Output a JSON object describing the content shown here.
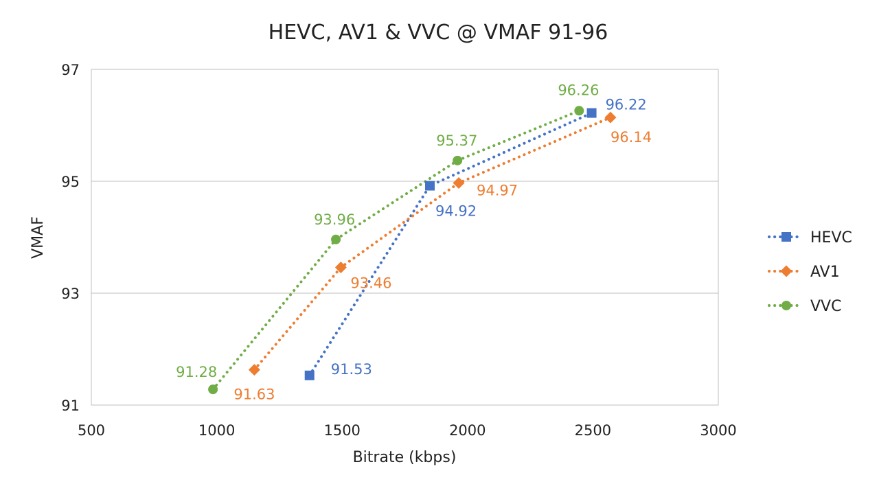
{
  "chart_data": {
    "type": "line",
    "title": "HEVC, AV1 & VVC @ VMAF 91-96",
    "xlabel": "Bitrate (kbps)",
    "ylabel": "VMAF",
    "xlim": [
      500,
      3000
    ],
    "ylim": [
      91,
      97
    ],
    "xticks": [
      500,
      1000,
      1500,
      2000,
      2500,
      3000
    ],
    "yticks": [
      91,
      93,
      95,
      97
    ],
    "grid": "horizontal",
    "legend": "right",
    "series": [
      {
        "name": "HEVC",
        "color": "#4472C4",
        "marker": "square",
        "line": "dotted",
        "points": [
          {
            "x": 1370,
            "y": 91.53,
            "label": "91.53"
          },
          {
            "x": 1850,
            "y": 94.92,
            "label": "94.92"
          },
          {
            "x": 2495,
            "y": 96.22,
            "label": "96.22"
          }
        ]
      },
      {
        "name": "AV1",
        "color": "#ED7D31",
        "marker": "diamond",
        "line": "dotted",
        "points": [
          {
            "x": 1150,
            "y": 91.63,
            "label": "91.63"
          },
          {
            "x": 1495,
            "y": 93.46,
            "label": "93.46"
          },
          {
            "x": 1965,
            "y": 94.97,
            "label": "94.97"
          },
          {
            "x": 2570,
            "y": 96.14,
            "label": "96.14"
          }
        ]
      },
      {
        "name": "VVC",
        "color": "#70AD47",
        "marker": "circle",
        "line": "dotted",
        "points": [
          {
            "x": 985,
            "y": 91.28,
            "label": "91.28"
          },
          {
            "x": 1475,
            "y": 93.96,
            "label": "93.96"
          },
          {
            "x": 1960,
            "y": 95.37,
            "label": "95.37"
          },
          {
            "x": 2445,
            "y": 96.26,
            "label": "96.26"
          }
        ]
      }
    ]
  }
}
